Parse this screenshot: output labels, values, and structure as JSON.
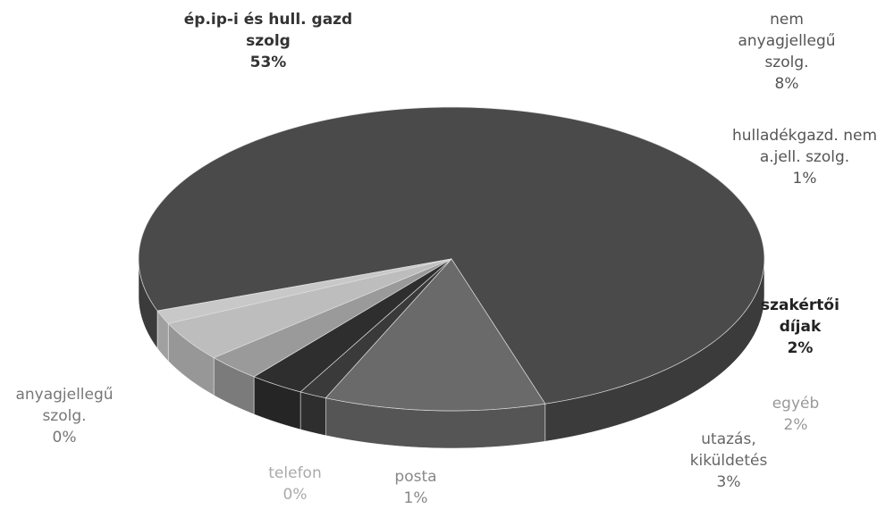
{
  "chart_data": {
    "type": "pie",
    "categories": [
      "ép.ip-i és hull. gazd szolg",
      "nem anyagjellegű szolg.",
      "hulladékgazd. nem a.jell. szolg.",
      "szakértői díjak",
      "egyéb",
      "utazás, kiküldetés",
      "posta",
      "telefon",
      "anyagjellegű szolg."
    ],
    "values": [
      53,
      8,
      1,
      2,
      2,
      3,
      1,
      0,
      0
    ],
    "value_labels": [
      "53%",
      "8%",
      "1%",
      "2%",
      "2%",
      "3%",
      "1%",
      "0%",
      "0%"
    ],
    "colors": [
      "#4a4a4a",
      "#6a6a6a",
      "#3a3a3a",
      "#2e2e2e",
      "#9a9a9a",
      "#bdbdbd",
      "#c8c8c8",
      "#a0a0a0",
      "#6e6e6e"
    ]
  }
}
